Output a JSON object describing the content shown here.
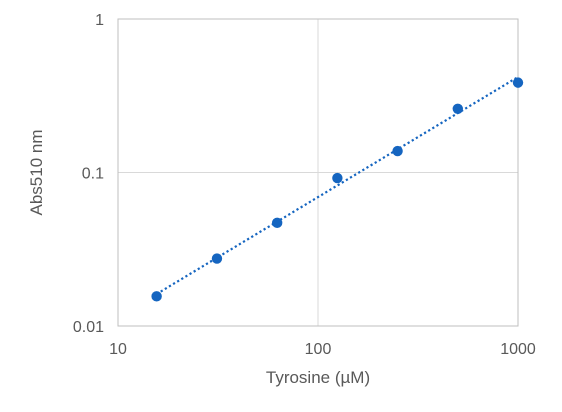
{
  "chart_data": {
    "type": "scatter",
    "title": "",
    "xlabel": "Tyrosine (µM)",
    "ylabel": "Abs510 nm",
    "x_scale": "log",
    "y_scale": "log",
    "xlim": [
      10,
      1000
    ],
    "ylim": [
      0.01,
      1
    ],
    "x_ticks": [
      10,
      100,
      1000
    ],
    "y_ticks": [
      0.01,
      0.1,
      1
    ],
    "x_tick_labels": [
      "10",
      "100",
      "1000"
    ],
    "y_tick_labels": [
      "0.01",
      "0.1",
      "1"
    ],
    "grid": true,
    "legend": "none",
    "trendline": {
      "style": "dotted",
      "kind": "power"
    },
    "series": [
      {
        "color": "#1565c0",
        "points": [
          {
            "x": 15.6,
            "y": 0.0156
          },
          {
            "x": 31.25,
            "y": 0.0275
          },
          {
            "x": 62.5,
            "y": 0.047
          },
          {
            "x": 125,
            "y": 0.092
          },
          {
            "x": 250,
            "y": 0.138
          },
          {
            "x": 500,
            "y": 0.26
          },
          {
            "x": 1000,
            "y": 0.385
          }
        ]
      }
    ]
  }
}
